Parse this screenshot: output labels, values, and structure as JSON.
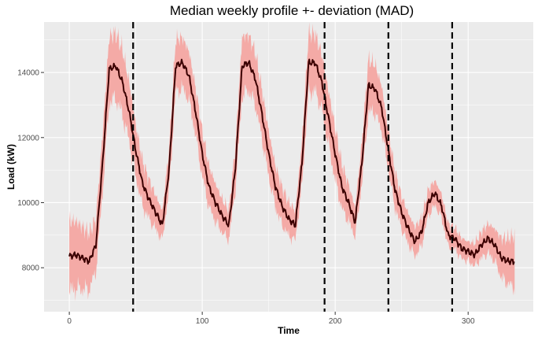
{
  "chart_data": {
    "type": "line",
    "title": "Median weekly profile +- deviation (MAD)",
    "xlabel": "Time",
    "ylabel": "Load (kW)",
    "xlim": [
      -19,
      349
    ],
    "ylim": [
      6650,
      15550
    ],
    "x_ticks": [
      0,
      100,
      200,
      300
    ],
    "y_ticks": [
      8000,
      10000,
      12000,
      14000
    ],
    "grid": true,
    "legend": "none",
    "colors": {
      "panel": "#ebebeb",
      "grid": "#ffffff",
      "median_line": "#3b0000",
      "band": "#f4aaa6",
      "vline": "#000000"
    },
    "vertical_lines": [
      48,
      192,
      240,
      288
    ],
    "median_keypoints": [
      [
        0,
        8350
      ],
      [
        5,
        8400
      ],
      [
        15,
        8200
      ],
      [
        20,
        8700
      ],
      [
        25,
        11200
      ],
      [
        30,
        14100
      ],
      [
        35,
        14200
      ],
      [
        40,
        13700
      ],
      [
        45,
        12800
      ],
      [
        50,
        11600
      ],
      [
        55,
        10600
      ],
      [
        60,
        10100
      ],
      [
        65,
        9700
      ],
      [
        70,
        9300
      ],
      [
        75,
        11000
      ],
      [
        80,
        14200
      ],
      [
        85,
        14300
      ],
      [
        90,
        13900
      ],
      [
        95,
        12800
      ],
      [
        100,
        11500
      ],
      [
        105,
        10500
      ],
      [
        110,
        10000
      ],
      [
        115,
        9600
      ],
      [
        120,
        9300
      ],
      [
        125,
        11100
      ],
      [
        130,
        14200
      ],
      [
        135,
        14300
      ],
      [
        140,
        13800
      ],
      [
        145,
        12700
      ],
      [
        150,
        11500
      ],
      [
        155,
        10500
      ],
      [
        160,
        9900
      ],
      [
        165,
        9500
      ],
      [
        170,
        9300
      ],
      [
        175,
        11200
      ],
      [
        180,
        14300
      ],
      [
        185,
        14300
      ],
      [
        190,
        13700
      ],
      [
        195,
        12600
      ],
      [
        200,
        11500
      ],
      [
        205,
        10500
      ],
      [
        210,
        10000
      ],
      [
        215,
        9400
      ],
      [
        220,
        11200
      ],
      [
        225,
        13600
      ],
      [
        230,
        13500
      ],
      [
        235,
        12900
      ],
      [
        240,
        11600
      ],
      [
        245,
        10400
      ],
      [
        250,
        9700
      ],
      [
        255,
        9200
      ],
      [
        260,
        8800
      ],
      [
        265,
        9100
      ],
      [
        270,
        10000
      ],
      [
        275,
        10300
      ],
      [
        280,
        9900
      ],
      [
        285,
        9000
      ],
      [
        290,
        8900
      ],
      [
        295,
        8600
      ],
      [
        300,
        8500
      ],
      [
        305,
        8400
      ],
      [
        310,
        8700
      ],
      [
        315,
        8900
      ],
      [
        320,
        8700
      ],
      [
        325,
        8300
      ],
      [
        330,
        8200
      ],
      [
        335,
        8200
      ]
    ],
    "deviation_keypoints": [
      [
        0,
        1100
      ],
      [
        20,
        800
      ],
      [
        30,
        1000
      ],
      [
        40,
        1000
      ],
      [
        50,
        800
      ],
      [
        60,
        600
      ],
      [
        70,
        450
      ],
      [
        80,
        800
      ],
      [
        100,
        700
      ],
      [
        120,
        450
      ],
      [
        130,
        900
      ],
      [
        150,
        700
      ],
      [
        170,
        450
      ],
      [
        180,
        900
      ],
      [
        200,
        800
      ],
      [
        215,
        450
      ],
      [
        225,
        800
      ],
      [
        250,
        500
      ],
      [
        270,
        400
      ],
      [
        300,
        300
      ],
      [
        320,
        500
      ],
      [
        335,
        800
      ]
    ]
  }
}
